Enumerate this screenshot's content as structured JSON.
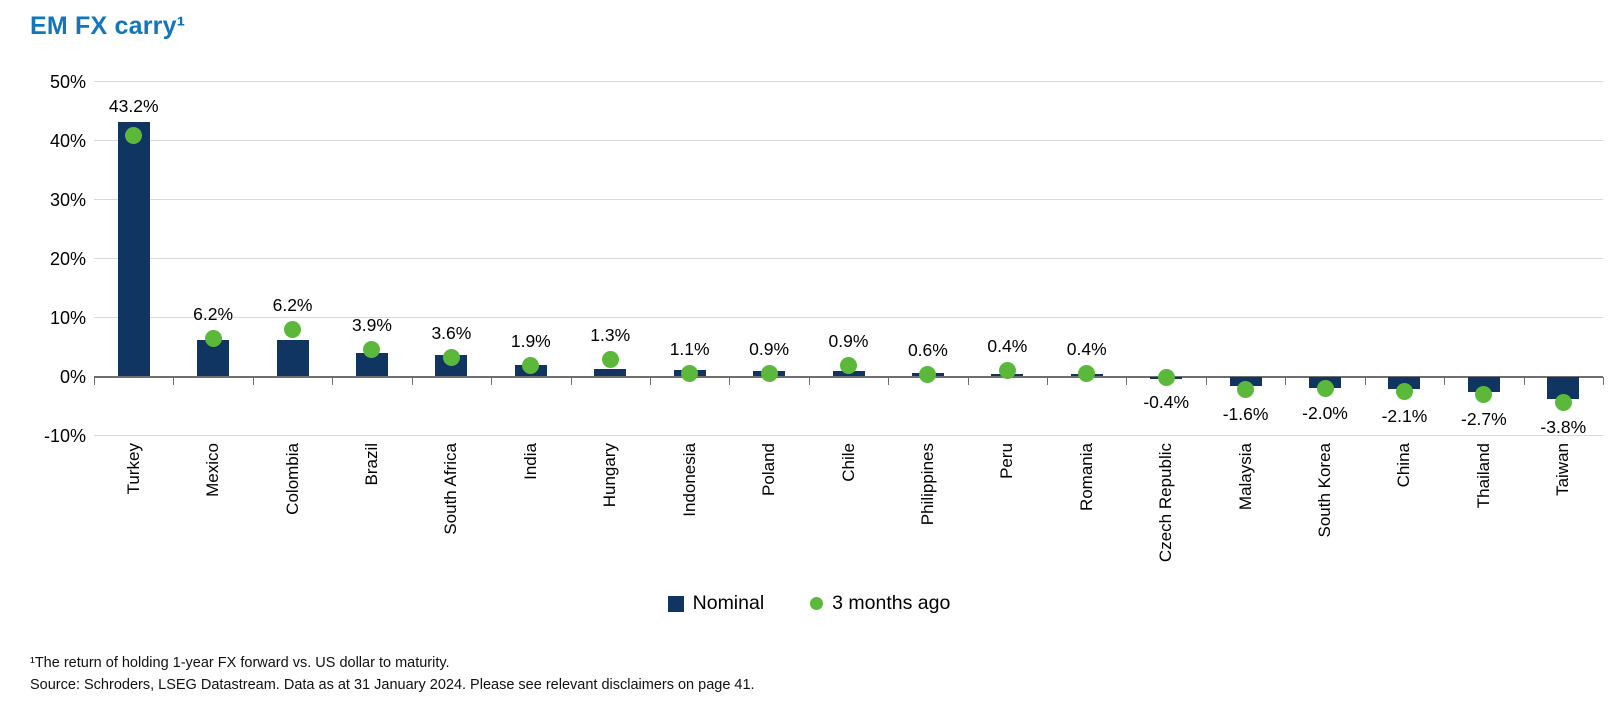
{
  "title": {
    "text": "EM FX carry¹",
    "color": "#1276bc"
  },
  "chart_data": {
    "type": "bar",
    "title": "EM FX carry¹",
    "categories": [
      "Turkey",
      "Mexico",
      "Colombia",
      "Brazil",
      "South Africa",
      "India",
      "Hungary",
      "Indonesia",
      "Poland",
      "Chile",
      "Philippines",
      "Peru",
      "Romania",
      "Czech Republic",
      "Malaysia",
      "South Korea",
      "China",
      "Thailand",
      "Taiwan"
    ],
    "series": [
      {
        "name": "Nominal",
        "render": "bar",
        "color": "#0f3560",
        "values": [
          43.2,
          6.2,
          6.2,
          3.9,
          3.6,
          1.9,
          1.3,
          1.1,
          0.9,
          0.9,
          0.6,
          0.4,
          0.4,
          -0.4,
          -1.6,
          -2.0,
          -2.1,
          -2.7,
          -3.8
        ],
        "labels": [
          "43.2%",
          "6.2%",
          "6.2%",
          "3.9%",
          "3.6%",
          "1.9%",
          "1.3%",
          "1.1%",
          "0.9%",
          "0.9%",
          "0.6%",
          "0.4%",
          "0.4%",
          "-0.4%",
          "-1.6%",
          "-2.0%",
          "-2.1%",
          "-2.7%",
          "-3.8%"
        ]
      },
      {
        "name": "3 months ago",
        "render": "point",
        "color": "#5cb83a",
        "values": [
          40.8,
          6.5,
          7.9,
          4.5,
          3.2,
          1.8,
          2.8,
          0.5,
          0.5,
          1.8,
          0.4,
          1.0,
          0.5,
          -0.2,
          -2.2,
          -2.0,
          -2.5,
          -3.0,
          -4.4
        ]
      }
    ],
    "xlabel": "",
    "ylabel": "",
    "ylim": [
      -10,
      50
    ],
    "yticks": [
      {
        "value": 50,
        "label": "50%"
      },
      {
        "value": 40,
        "label": "40%"
      },
      {
        "value": 30,
        "label": "30%"
      },
      {
        "value": 20,
        "label": "20%"
      },
      {
        "value": 10,
        "label": "10%"
      },
      {
        "value": 0,
        "label": "0%"
      },
      {
        "value": -10,
        "label": "-10%"
      }
    ],
    "grid": true,
    "legend_position": "bottom"
  },
  "footnotes": {
    "line1": "¹The return of holding 1-year FX forward vs. US dollar to maturity.",
    "line2": "Source: Schroders, LSEG Datastream. Data as at 31 January 2024. Please see relevant disclaimers on page 41."
  }
}
